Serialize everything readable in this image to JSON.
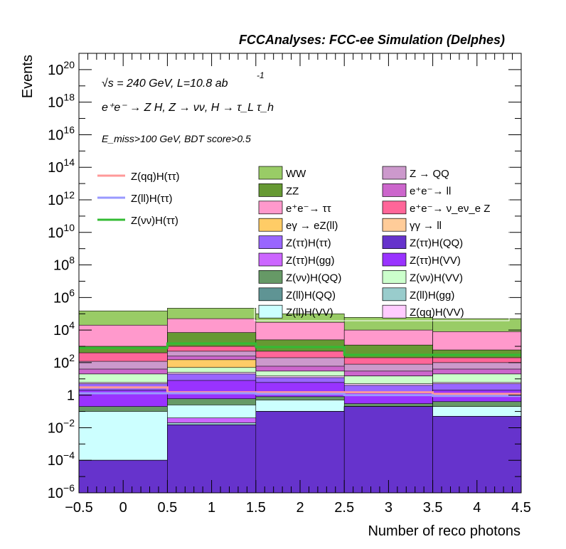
{
  "header": {
    "title": "FCCAnalyses: FCC-ee Simulation (Delphes)"
  },
  "annotations": {
    "line1": "√s = 240 GeV, L=10.8 ab",
    "line1_sup": "-1",
    "line2": "e⁺e⁻ → Z H, Z → νν, H → τ_L τ_h",
    "line3": "E_miss>100 GeV, BDT score>0.5"
  },
  "chart_data": {
    "type": "bar",
    "stacked": true,
    "yscale": "log",
    "xlabel": "Number of reco photons",
    "ylabel": "Events",
    "xlim": [
      -0.5,
      4.5
    ],
    "ylim": [
      1e-06,
      1e+21
    ],
    "bin_edges": [
      -0.5,
      0.5,
      1.5,
      2.5,
      3.5,
      4.5
    ],
    "x_ticks": [
      "−0.5",
      "0",
      "0.5",
      "1",
      "1.5",
      "2",
      "2.5",
      "3",
      "3.5",
      "4",
      "4.5"
    ],
    "y_ticks": [
      {
        "base": "10",
        "exp": "−6",
        "value": 1e-06
      },
      {
        "base": "10",
        "exp": "−4",
        "value": 0.0001
      },
      {
        "base": "10",
        "exp": "−2",
        "value": 0.01
      },
      {
        "base": "1",
        "exp": "",
        "value": 1
      },
      {
        "base": "10",
        "exp": "2",
        "value": 100.0
      },
      {
        "base": "10",
        "exp": "4",
        "value": 10000.0
      },
      {
        "base": "10",
        "exp": "6",
        "value": 1000000.0
      },
      {
        "base": "10",
        "exp": "8",
        "value": 100000000.0
      },
      {
        "base": "10",
        "exp": "10",
        "value": 10000000000.0
      },
      {
        "base": "10",
        "exp": "12",
        "value": 1000000000000.0
      },
      {
        "base": "10",
        "exp": "14",
        "value": 100000000000000.0
      },
      {
        "base": "10",
        "exp": "16",
        "value": 1e+16
      },
      {
        "base": "10",
        "exp": "18",
        "value": 1e+18
      },
      {
        "base": "10",
        "exp": "20",
        "value": 1e+20
      }
    ],
    "stack_order_bottom_to_top": [
      "Z(ττ)H(QQ)",
      "Z(ll)H(QQ)",
      "Z(ll)H(gg)",
      "Z(ττ)H(gg)",
      "Z(ll)H(VV)",
      "Z(ννbar)H(QQ)",
      "Z(ττ)H(VV)",
      "Z(ττ)H(ττ)",
      "Z(qq)H(VV)",
      "Z(ννbar)H(VV)",
      "eγ → eZ(ll)",
      "γγ → ll",
      "e⁺e⁻→ ll",
      "Z → QQ",
      "e⁺e⁻→ ν_eν_e Z",
      "ZZ",
      "e⁺e⁻→ ττ",
      "WW"
    ],
    "stack_tops": [
      {
        "name": "Z(ττ)H(QQ)",
        "color": "#6633cc",
        "values": [
          0.0001,
          0.015,
          0.1,
          0.2,
          0.05
        ]
      },
      {
        "name": "Z(ll)H(QQ)",
        "color": "#5f9494",
        "values": [
          0.0001,
          0.015,
          0.1,
          0.2,
          0.05
        ]
      },
      {
        "name": "Z(ll)H(gg)",
        "color": "#99cccc",
        "values": [
          0.0001,
          0.02,
          0.1,
          0.2,
          0.05
        ]
      },
      {
        "name": "Z(ττ)H(gg)",
        "color": "#cc66ff",
        "values": [
          0.0001,
          0.04,
          0.1,
          0.2,
          0.03
        ]
      },
      {
        "name": "Z(ll)H(VV)",
        "color": "#ccffff",
        "values": [
          0.1,
          0.25,
          0.5,
          0.2,
          0.2
        ]
      },
      {
        "name": "Z(ννbar)H(QQ)",
        "color": "#669966",
        "values": [
          0.2,
          0.6,
          0.8,
          0.3,
          0.4
        ]
      },
      {
        "name": "Z(ττ)H(VV)",
        "color": "#9933ff",
        "values": [
          2,
          8,
          6,
          1.5,
          2
        ]
      },
      {
        "name": "Z(ττ)H(ττ)",
        "color": "#9966ff",
        "values": [
          5,
          20,
          12,
          4,
          5
        ]
      },
      {
        "name": "Z(qq)H(VV)",
        "color": "#ffccff",
        "values": [
          6,
          25,
          15,
          5,
          6
        ]
      },
      {
        "name": "Z(ννbar)H(VV)",
        "color": "#ccffcc",
        "values": [
          20,
          50,
          30,
          15,
          20
        ]
      },
      {
        "name": "eγ → eZ(ll)",
        "color": "#ffcc66",
        "values": [
          20,
          150,
          30,
          15,
          20
        ]
      },
      {
        "name": "γγ → ll",
        "color": "#ffcc99",
        "values": [
          20,
          150,
          30,
          15,
          20
        ]
      },
      {
        "name": "e⁺e⁻→ ll",
        "color": "#cc66cc",
        "values": [
          40,
          250,
          60,
          30,
          40
        ]
      },
      {
        "name": "Z → QQ",
        "color": "#cc99cc",
        "values": [
          120,
          500,
          200,
          80,
          100
        ]
      },
      {
        "name": "e⁺e⁻→ ν_eν_e Z",
        "color": "#ff6699",
        "values": [
          400,
          1000,
          500,
          200,
          200
        ]
      },
      {
        "name": "ZZ",
        "color": "#669933",
        "values": [
          1000,
          7000,
          2500,
          1200,
          600
        ]
      },
      {
        "name": "e⁺e⁻→ ττ",
        "color": "#ff99cc",
        "values": [
          20000,
          50000,
          30000,
          10000,
          8000
        ]
      },
      {
        "name": "WW",
        "color": "#99cc66",
        "values": [
          150000,
          220000,
          100000,
          60000,
          50000
        ]
      }
    ],
    "signal_lines": [
      {
        "name": "Z(qq)H(ττ)",
        "color": "#ff9999",
        "values": [
          3,
          1.5,
          1.5,
          1.5,
          1.2
        ]
      },
      {
        "name": "Z(ll)H(ττ)",
        "color": "#9999ff",
        "values": [
          1.3,
          1.3,
          1.2,
          1.0,
          0.9
        ]
      },
      {
        "name": "Z(νν)H(ττ)",
        "color": "#33bb33",
        "values": [
          800,
          1500,
          900,
          300,
          300
        ]
      }
    ],
    "legend_signal": [
      "Z(qq)H(ττ)",
      "Z(ll)H(ττ)",
      "Z(νν)H(ττ)"
    ],
    "legend_background": [
      {
        "label": "WW",
        "color": "#99cc66"
      },
      {
        "label": "Z → QQ",
        "color": "#cc99cc"
      },
      {
        "label": "ZZ",
        "color": "#669933"
      },
      {
        "label": "e⁺e⁻→ ll",
        "color": "#cc66cc"
      },
      {
        "label": "e⁺e⁻→ ττ",
        "color": "#ff99cc"
      },
      {
        "label": "e⁺e⁻→ ν_eν_e Z",
        "color": "#ff6699"
      },
      {
        "label": "eγ → eZ(ll)",
        "color": "#ffcc66"
      },
      {
        "label": "γγ → ll",
        "color": "#ffcc99"
      },
      {
        "label": "Z(ττ)H(ττ)",
        "color": "#9966ff"
      },
      {
        "label": "Z(ττ)H(QQ)",
        "color": "#6633cc"
      },
      {
        "label": "Z(ττ)H(gg)",
        "color": "#cc66ff"
      },
      {
        "label": "Z(ττ)H(VV)",
        "color": "#9933ff"
      },
      {
        "label": "Z(νν)H(QQ)",
        "color": "#669966"
      },
      {
        "label": "Z(νν)H(VV)",
        "color": "#ccffcc"
      },
      {
        "label": "Z(ll)H(QQ)",
        "color": "#5f9494"
      },
      {
        "label": "Z(ll)H(gg)",
        "color": "#99cccc"
      },
      {
        "label": "Z(ll)H(VV)",
        "color": "#ccffff"
      },
      {
        "label": "Z(qq)H(VV)",
        "color": "#ffccff"
      }
    ],
    "legend_placement": "top-right",
    "grid": false
  }
}
